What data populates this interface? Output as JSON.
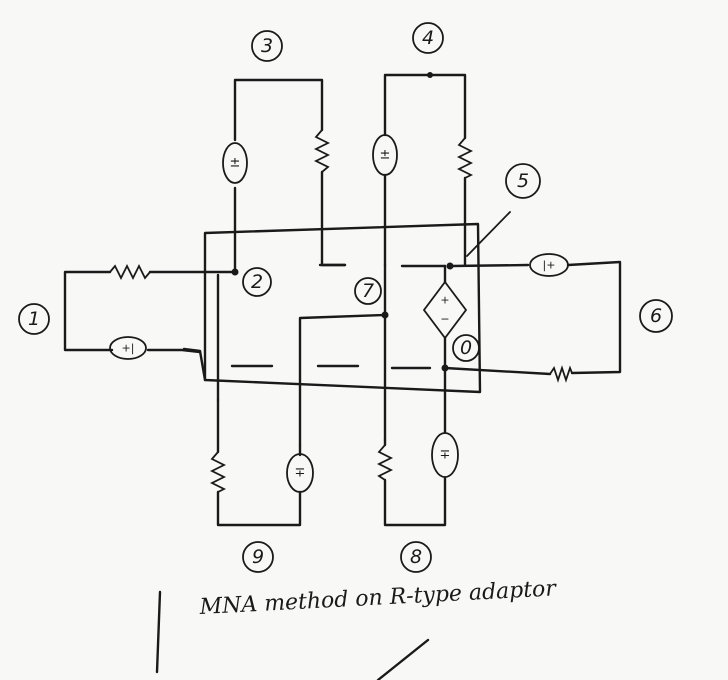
{
  "caption": "MNA method on R-type adaptor",
  "nodes": {
    "n0": "0",
    "n1": "1",
    "n2": "2",
    "n3": "3",
    "n4": "4",
    "n5": "5",
    "n6": "6",
    "n7": "7",
    "n8": "8",
    "n9": "9"
  },
  "symbols": {
    "src_left_top": "±",
    "src_right_top": "±",
    "src_port1": "+|",
    "src_port6": "|+",
    "src_bottom_left": "∓",
    "src_bottom_right": "∓",
    "dep_plus": "+",
    "dep_minus": "−"
  }
}
